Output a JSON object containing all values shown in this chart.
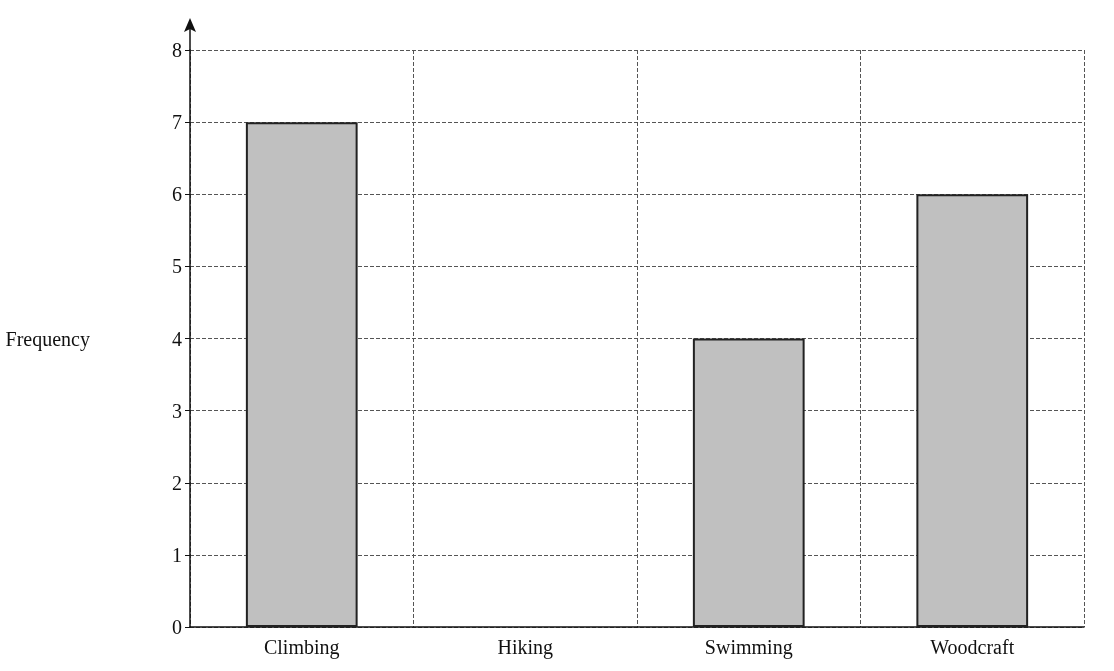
{
  "chart_data": {
    "type": "bar",
    "ylabel": "Frequency",
    "categories": [
      "Climbing",
      "Hiking",
      "Swimming",
      "Woodcraft"
    ],
    "values": [
      7,
      null,
      4,
      6
    ],
    "color": "#c0c0c0",
    "ylim": [
      0,
      8
    ],
    "yticks": [
      0,
      1,
      2,
      3,
      4,
      5,
      6,
      7,
      8
    ],
    "grid": true
  }
}
